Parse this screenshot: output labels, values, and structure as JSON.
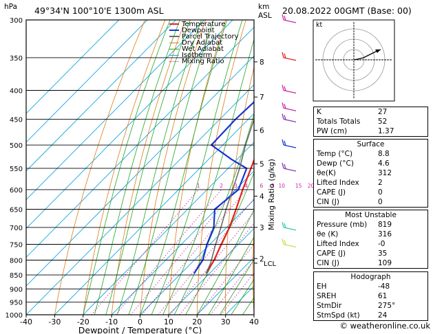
{
  "header": {
    "location": "49°34'N 100°10'E 1300m ASL",
    "datetime": "20.08.2022 00GMT (Base: 00)",
    "hpa_label": "hPa",
    "km_label": "km",
    "asl_label": "ASL"
  },
  "legend": [
    {
      "label": "Temperature",
      "color": "#e8201c"
    },
    {
      "label": "Dewpoint",
      "color": "#1433d6"
    },
    {
      "label": "Parcel Trajectory",
      "color": "#6b6b6b"
    },
    {
      "label": "Dry Adiabat",
      "color": "#e07a12"
    },
    {
      "label": "Wet Adiabat",
      "color": "#22a322"
    },
    {
      "label": "Isotherm",
      "color": "#12a6e0"
    },
    {
      "label": "Mixing Ratio",
      "color": "#cc22aa"
    }
  ],
  "chart_data": {
    "type": "line",
    "subtype": "skew-t log-p sounding",
    "xlabel": "Dewpoint / Temperature (°C)",
    "ylabel_right": "Mixing Ratio (g/kg)",
    "x_ticks": [
      -40,
      -30,
      -20,
      -10,
      0,
      10,
      20,
      30,
      40
    ],
    "x_range": [
      -40,
      40
    ],
    "pressure_levels": [
      300,
      350,
      400,
      450,
      500,
      550,
      600,
      650,
      700,
      750,
      800,
      850,
      900,
      950,
      1000
    ],
    "pressure_range": [
      300,
      1000
    ],
    "km_ticks": [
      {
        "label": "8",
        "p": 356
      },
      {
        "label": "7",
        "p": 411
      },
      {
        "label": "6",
        "p": 471
      },
      {
        "label": "5",
        "p": 540
      },
      {
        "label": "4",
        "p": 616
      },
      {
        "label": "3",
        "p": 700
      },
      {
        "label": "2",
        "p": 795
      }
    ],
    "lcl": {
      "label": "LCL",
      "p": 810
    },
    "mixing_ratio_labels": [
      1,
      2,
      3,
      4,
      6,
      8,
      10,
      15,
      20,
      25
    ],
    "series": [
      {
        "name": "Temperature",
        "color": "#e8201c",
        "points": [
          [
            845,
            8.8
          ],
          [
            800,
            7.0
          ],
          [
            750,
            4.0
          ],
          [
            700,
            1.0
          ],
          [
            650,
            -3.0
          ],
          [
            600,
            -7.5
          ],
          [
            550,
            -12.0
          ],
          [
            500,
            -17.0
          ],
          [
            450,
            -23.0
          ],
          [
            400,
            -29.0
          ],
          [
            350,
            -37.0
          ],
          [
            300,
            -45.0
          ]
        ]
      },
      {
        "name": "Dewpoint",
        "color": "#1433d6",
        "points": [
          [
            845,
            4.6
          ],
          [
            800,
            3.0
          ],
          [
            750,
            -1.0
          ],
          [
            700,
            -4.5
          ],
          [
            650,
            -10.5
          ],
          [
            600,
            -9.0
          ],
          [
            550,
            -13.5
          ],
          [
            530,
            -22.0
          ],
          [
            500,
            -34.0
          ],
          [
            450,
            -34.5
          ],
          [
            420,
            -34.0
          ],
          [
            400,
            -35.5
          ],
          [
            350,
            -44.0
          ],
          [
            330,
            -52.0
          ],
          [
            300,
            -56.0
          ]
        ]
      },
      {
        "name": "Parcel Trajectory",
        "color": "#6b6b6b",
        "points": [
          [
            845,
            8.8
          ],
          [
            810,
            6.8
          ],
          [
            750,
            2.0
          ],
          [
            700,
            -2.0
          ],
          [
            650,
            -6.5
          ],
          [
            600,
            -11.0
          ],
          [
            550,
            -16.0
          ],
          [
            500,
            -22.0
          ],
          [
            450,
            -28.0
          ],
          [
            400,
            -35.5
          ],
          [
            350,
            -43.0
          ],
          [
            300,
            -52.0
          ]
        ]
      }
    ]
  },
  "hodograph": {
    "label": "kt"
  },
  "indices": {
    "rows": [
      {
        "k": "K",
        "v": "27"
      },
      {
        "k": "Totals Totals",
        "v": "52"
      },
      {
        "k": "PW (cm)",
        "v": "1.37"
      }
    ]
  },
  "surface": {
    "title": "Surface",
    "rows": [
      {
        "k": "Temp (°C)",
        "v": "8.8"
      },
      {
        "k": "Dewp (°C)",
        "v": "4.6"
      },
      {
        "k": "θe(K)",
        "v": "312"
      },
      {
        "k": "Lifted Index",
        "v": "2"
      },
      {
        "k": "CAPE (J)",
        "v": "0"
      },
      {
        "k": "CIN (J)",
        "v": "0"
      }
    ]
  },
  "most_unstable": {
    "title": "Most Unstable",
    "rows": [
      {
        "k": "Pressure (mb)",
        "v": "819"
      },
      {
        "k": "θe (K)",
        "v": "316"
      },
      {
        "k": "Lifted Index",
        "v": "-0"
      },
      {
        "k": "CAPE (J)",
        "v": "35"
      },
      {
        "k": "CIN (J)",
        "v": "109"
      }
    ]
  },
  "hodo_table": {
    "title": "Hodograph",
    "rows": [
      {
        "k": "EH",
        "v": "-48"
      },
      {
        "k": "SREH",
        "v": "61"
      },
      {
        "k": "StmDir",
        "v": "275°"
      },
      {
        "k": "StmSpd (kt)",
        "v": "24"
      }
    ]
  },
  "credit": "© weatheronline.co.uk"
}
